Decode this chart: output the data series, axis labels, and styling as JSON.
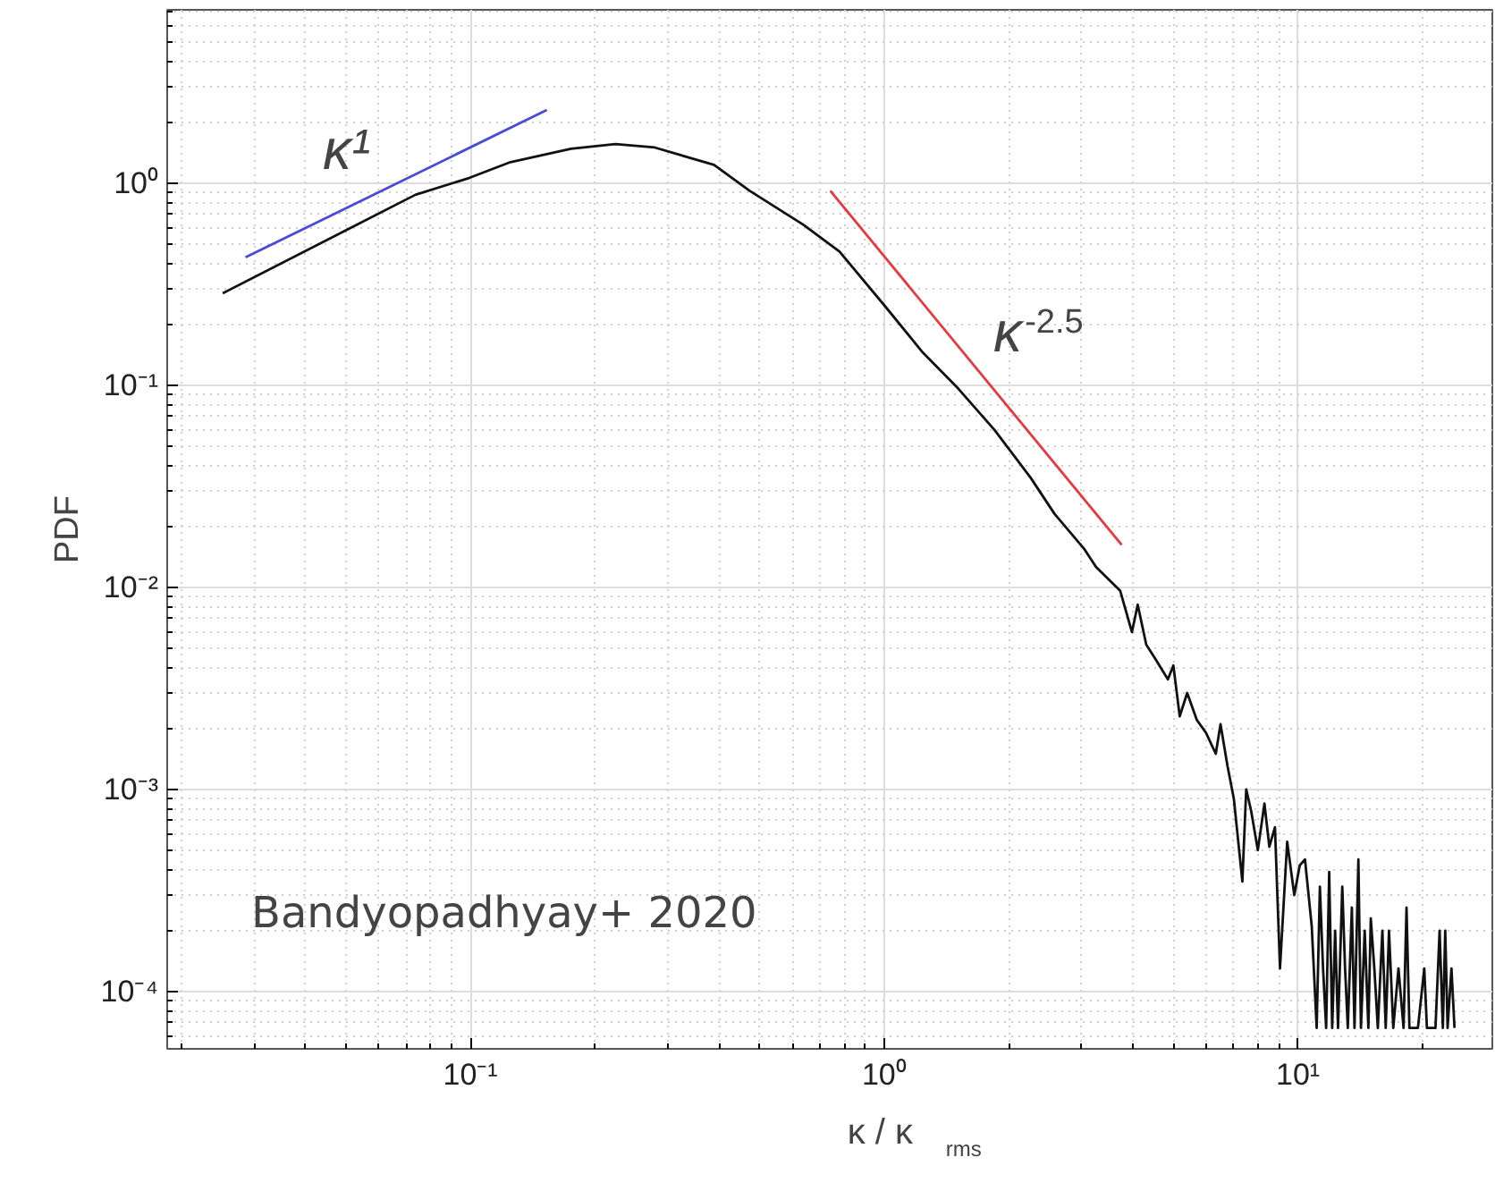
{
  "chart_data": {
    "type": "line",
    "xlabel": "κ / κ$_{rms}$",
    "ylabel": "PDF",
    "log": "xy",
    "grid": true,
    "xlim": [
      0.0185,
      29.5
    ],
    "ylim": [
      5.2e-05,
      7.2
    ],
    "xticks": [
      {
        "value": 0.1,
        "label": "10⁻¹"
      },
      {
        "value": 1,
        "label": "10⁰"
      },
      {
        "value": 10,
        "label": "10¹"
      }
    ],
    "yticks": [
      {
        "value": 0.0001,
        "label": "10⁻⁴"
      },
      {
        "value": 0.001,
        "label": "10⁻³"
      },
      {
        "value": 0.01,
        "label": "10⁻²"
      },
      {
        "value": 0.1,
        "label": "10⁻¹"
      },
      {
        "value": 1,
        "label": "10⁰"
      }
    ],
    "series": [
      {
        "color": "#111111",
        "x": [
          0.0252,
          0.0736,
          0.0993,
          0.125,
          0.175,
          0.224,
          0.279,
          0.388,
          0.473,
          0.638,
          0.78,
          1.0,
          1.24,
          1.51,
          1.85,
          2.26,
          2.58,
          3.05,
          3.25,
          3.72,
          3.97,
          4.1,
          4.3,
          4.5,
          4.85,
          5.0,
          5.18,
          5.4,
          5.7,
          6.0,
          6.33,
          6.5,
          6.76,
          7.0,
          7.34,
          7.5,
          7.71,
          8.0,
          8.3,
          8.53,
          8.8,
          9.05,
          9.42,
          9.8,
          10.1,
          10.4,
          10.8,
          11.1,
          11.3,
          11.5,
          11.7,
          11.9,
          12.1,
          12.3,
          12.5,
          12.8,
          13.0,
          13.2,
          13.5,
          13.7,
          14.0,
          14.2,
          14.5,
          14.8,
          15.0,
          15.3,
          15.6,
          16.0,
          16.3,
          16.6,
          17.0,
          17.5,
          18.0,
          18.3,
          18.6,
          19.5,
          20.2,
          20.5,
          21.5,
          22.0,
          22.4,
          22.7,
          23.0,
          23.5,
          23.9
        ],
        "values": [
          0.285,
          0.875,
          1.06,
          1.27,
          1.48,
          1.56,
          1.5,
          1.23,
          0.916,
          0.622,
          0.458,
          0.249,
          0.145,
          0.0962,
          0.0599,
          0.0348,
          0.0231,
          0.0154,
          0.0126,
          0.0096,
          0.006,
          0.0082,
          0.0052,
          0.0045,
          0.0035,
          0.0041,
          0.0023,
          0.003,
          0.0022,
          0.0019,
          0.0015,
          0.0021,
          0.0013,
          0.0009,
          0.00035,
          0.001,
          0.00078,
          0.0005,
          0.00085,
          0.00052,
          0.00065,
          0.00013,
          0.00055,
          0.0003,
          0.00042,
          0.00045,
          0.00021,
          6.6e-05,
          0.00033,
          0.00013,
          6.6e-05,
          0.00039,
          6.6e-05,
          0.0002,
          6.6e-05,
          0.00033,
          0.00013,
          6.6e-05,
          0.00026,
          6.6e-05,
          0.00045,
          6.6e-05,
          0.0002,
          6.6e-05,
          0.00023,
          0.00013,
          6.6e-05,
          0.0002,
          6.6e-05,
          0.0002,
          6.6e-05,
          0.00013,
          6.6e-05,
          0.00026,
          6.6e-05,
          6.6e-05,
          0.00013,
          6.6e-05,
          6.6e-05,
          0.0002,
          6.6e-05,
          0.0002,
          6.6e-05,
          0.00013,
          6.6e-05
        ]
      },
      {
        "color": "#4a4ad8",
        "x": [
          0.0286,
          0.153
        ],
        "values": [
          0.429,
          2.3
        ]
      },
      {
        "color": "#e8383d",
        "x": [
          0.741,
          3.75
        ],
        "values": [
          0.916,
          0.0162
        ]
      }
    ],
    "annotations": [
      "κ¹",
      "κ$^{-2.5}$",
      "Bandyopadhyay+ 2020"
    ]
  }
}
